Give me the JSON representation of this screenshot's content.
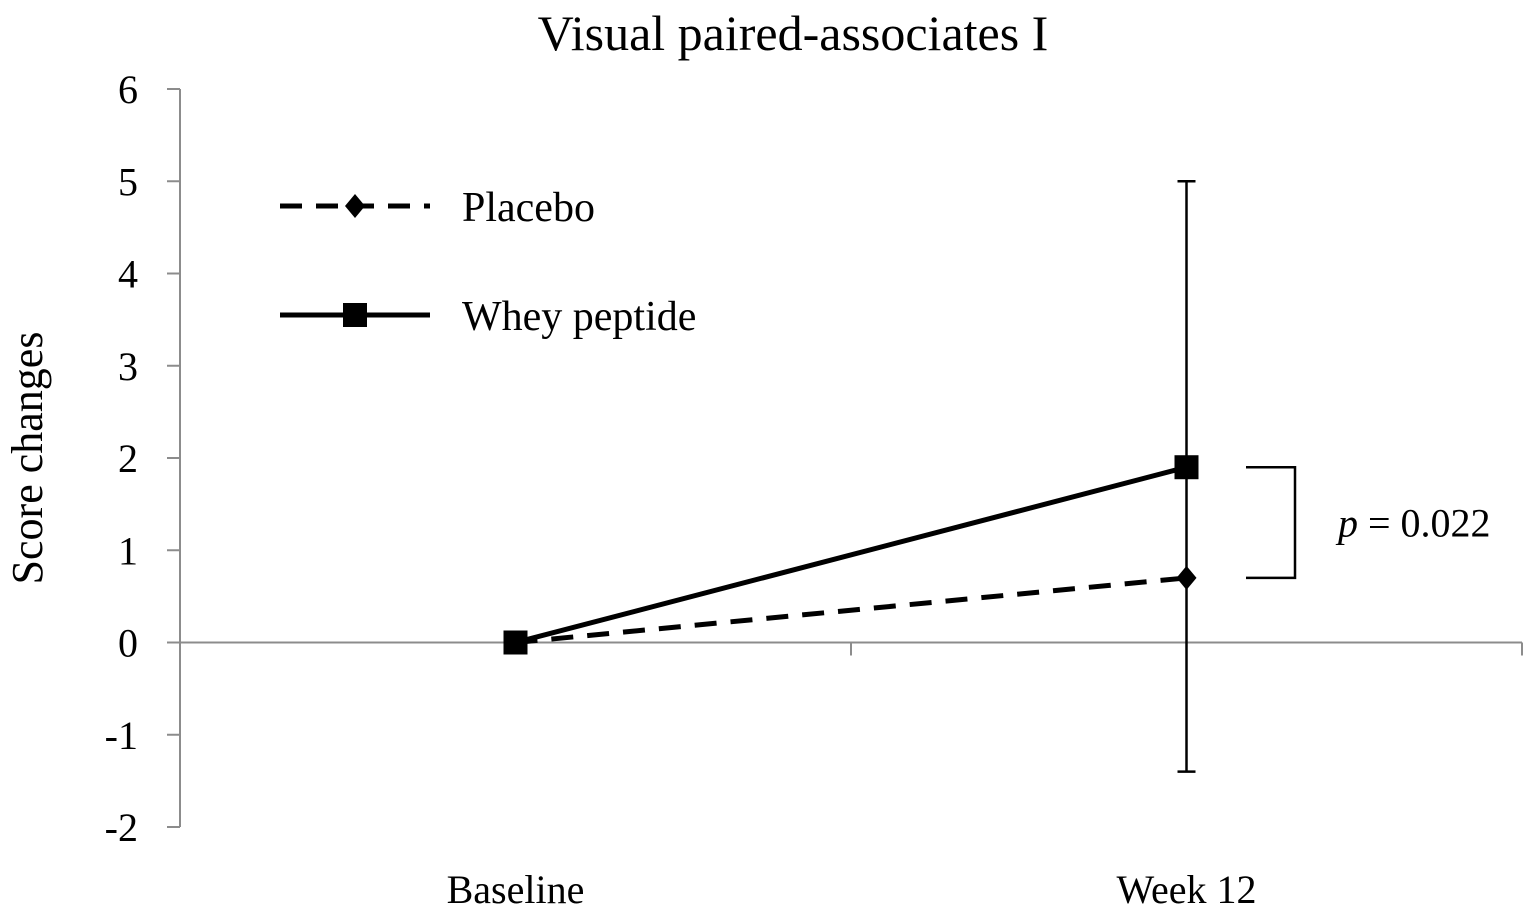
{
  "chart_data": {
    "type": "line",
    "title": "Visual paired-associates I",
    "xlabel": "",
    "ylabel": "Score changes",
    "categories": [
      "Baseline",
      "Week 12"
    ],
    "ylim": [
      -2,
      6
    ],
    "yticks": [
      -2,
      -1,
      0,
      1,
      2,
      3,
      4,
      5,
      6
    ],
    "grid": false,
    "legend_position": "top-left",
    "series": [
      {
        "name": "Placebo",
        "values": [
          0,
          0.7
        ],
        "line_style": "dashed",
        "marker": "diamond",
        "color": "#000000"
      },
      {
        "name": "Whey peptide",
        "values": [
          0,
          1.9
        ],
        "line_style": "solid",
        "marker": "square",
        "color": "#000000",
        "error_bars": [
          null,
          {
            "low": -1.4,
            "high": 5.0
          }
        ]
      }
    ],
    "annotation": {
      "p_symbol": "p",
      "p_text": " = 0.022",
      "between_values": [
        0.7,
        1.9
      ],
      "category": "Week 12"
    }
  }
}
